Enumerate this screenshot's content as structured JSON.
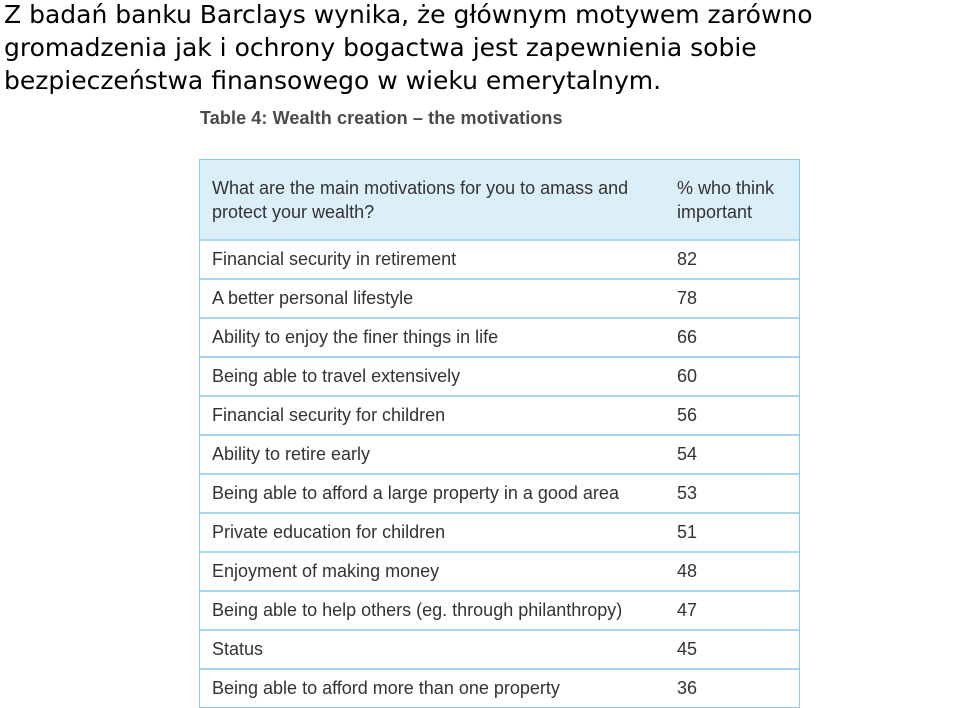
{
  "intro_text": "Z badań banku Barclays wynika, że głównym motywem zarówno gromadzenia jak i ochrony bogactwa jest zapewnienia sobie bezpieczeństwa finansowego w wieku emerytalnym.",
  "table": {
    "title": "Table 4: Wealth creation – the motivations",
    "header": {
      "question": "What are the main motivations for you to amass and protect your wealth?",
      "pct": "% who think important"
    },
    "rows": [
      {
        "label": "Financial security in retirement",
        "value": "82"
      },
      {
        "label": "A better personal lifestyle",
        "value": "78"
      },
      {
        "label": "Ability to enjoy the finer things in life",
        "value": "66"
      },
      {
        "label": "Being able to travel extensively",
        "value": "60"
      },
      {
        "label": "Financial security for children",
        "value": "56"
      },
      {
        "label": "Ability to retire early",
        "value": "54"
      },
      {
        "label": "Being able to afford a large property in a good area",
        "value": "53"
      },
      {
        "label": "Private education for children",
        "value": "51"
      },
      {
        "label": "Enjoyment of making money",
        "value": "48"
      },
      {
        "label": "Being able to help others (eg. through philanthropy)",
        "value": "47"
      },
      {
        "label": "Status",
        "value": "45"
      },
      {
        "label": "Being able to afford more than one property",
        "value": "36"
      }
    ]
  }
}
